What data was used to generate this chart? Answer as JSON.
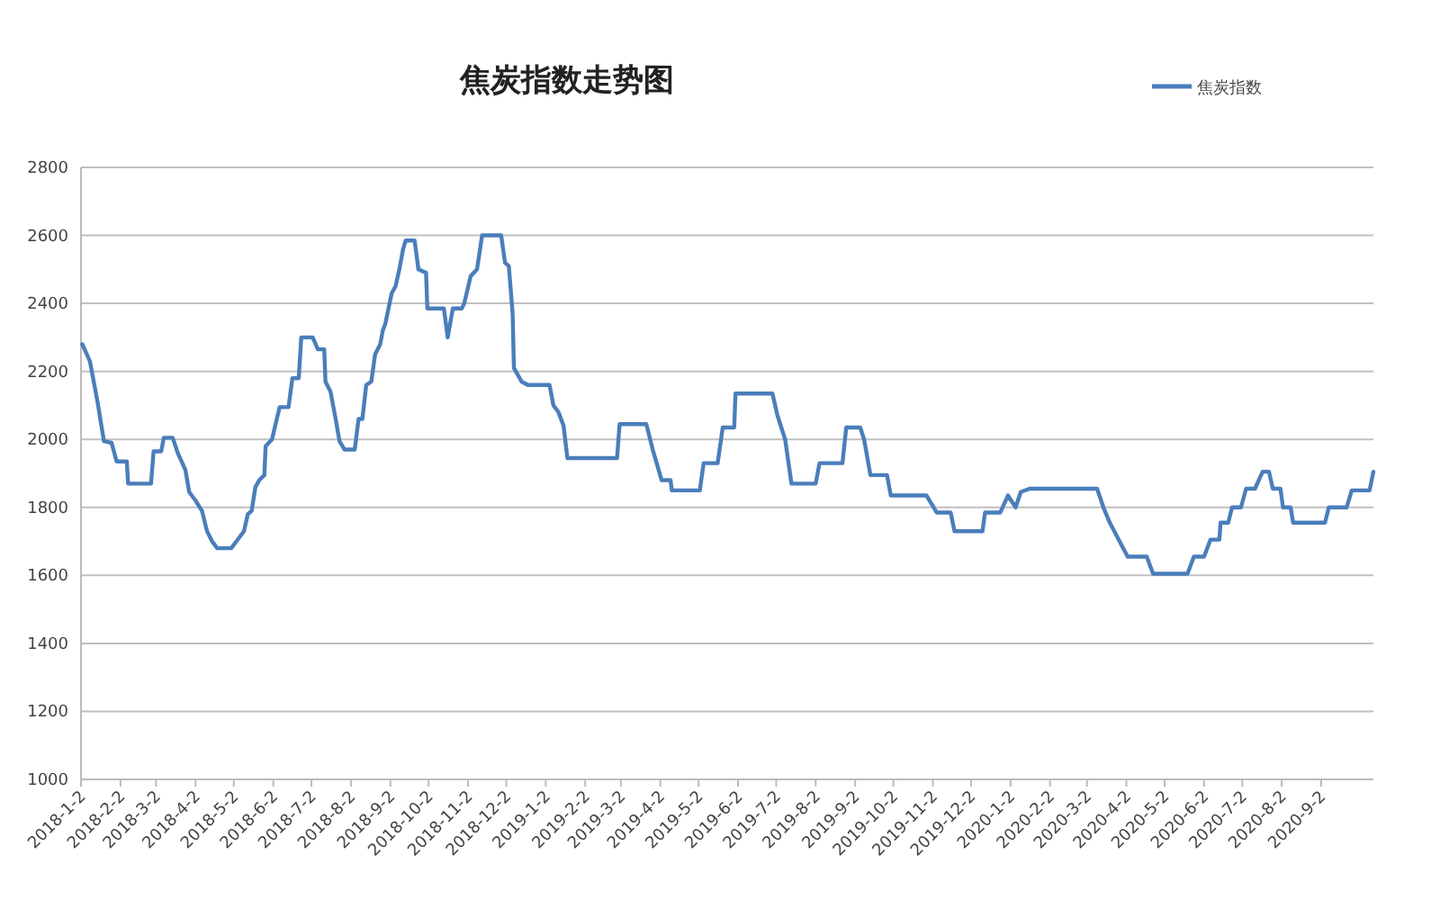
{
  "chart_data": {
    "type": "line",
    "title": "焦炭指数走势图",
    "legend": "top right",
    "grid": "y",
    "ylim": [
      1000,
      2800
    ],
    "yticks": [
      1000,
      1200,
      1400,
      1600,
      1800,
      2000,
      2200,
      2400,
      2600,
      2800
    ],
    "xlim": [
      "2018-01-02",
      "2020-10-13"
    ],
    "xticks": [
      {
        "value": "2018-01-02",
        "label": "2018-1-2"
      },
      {
        "value": "2018-02-02",
        "label": "2018-2-2"
      },
      {
        "value": "2018-03-02",
        "label": "2018-3-2"
      },
      {
        "value": "2018-04-02",
        "label": "2018-4-2"
      },
      {
        "value": "2018-05-02",
        "label": "2018-5-2"
      },
      {
        "value": "2018-06-02",
        "label": "2018-6-2"
      },
      {
        "value": "2018-07-02",
        "label": "2018-7-2"
      },
      {
        "value": "2018-08-02",
        "label": "2018-8-2"
      },
      {
        "value": "2018-09-02",
        "label": "2018-9-2"
      },
      {
        "value": "2018-10-02",
        "label": "2018-10-2"
      },
      {
        "value": "2018-11-02",
        "label": "2018-11-2"
      },
      {
        "value": "2018-12-02",
        "label": "2018-12-2"
      },
      {
        "value": "2019-01-02",
        "label": "2019-1-2"
      },
      {
        "value": "2019-02-02",
        "label": "2019-2-2"
      },
      {
        "value": "2019-03-02",
        "label": "2019-3-2"
      },
      {
        "value": "2019-04-02",
        "label": "2019-4-2"
      },
      {
        "value": "2019-05-02",
        "label": "2019-5-2"
      },
      {
        "value": "2019-06-02",
        "label": "2019-6-2"
      },
      {
        "value": "2019-07-02",
        "label": "2019-7-2"
      },
      {
        "value": "2019-08-02",
        "label": "2019-8-2"
      },
      {
        "value": "2019-09-02",
        "label": "2019-9-2"
      },
      {
        "value": "2019-10-02",
        "label": "2019-10-2"
      },
      {
        "value": "2019-11-02",
        "label": "2019-11-2"
      },
      {
        "value": "2019-12-02",
        "label": "2019-12-2"
      },
      {
        "value": "2020-01-02",
        "label": "2020-1-2"
      },
      {
        "value": "2020-02-02",
        "label": "2020-2-2"
      },
      {
        "value": "2020-03-02",
        "label": "2020-3-2"
      },
      {
        "value": "2020-04-02",
        "label": "2020-4-2"
      },
      {
        "value": "2020-05-02",
        "label": "2020-5-2"
      },
      {
        "value": "2020-06-02",
        "label": "2020-6-2"
      },
      {
        "value": "2020-07-02",
        "label": "2020-7-2"
      },
      {
        "value": "2020-08-02",
        "label": "2020-8-2"
      },
      {
        "value": "2020-09-02",
        "label": "2020-9-2"
      }
    ],
    "x": [
      "2018-01-03",
      "2018-01-09",
      "2018-01-15",
      "2018-01-20",
      "2018-01-26",
      "2018-01-30",
      "2018-02-07",
      "2018-02-08",
      "2018-02-26",
      "2018-02-28",
      "2018-03-06",
      "2018-03-08",
      "2018-03-15",
      "2018-03-19",
      "2018-03-25",
      "2018-03-28",
      "2018-04-02",
      "2018-04-07",
      "2018-04-11",
      "2018-04-15",
      "2018-04-19",
      "2018-04-30",
      "2018-05-06",
      "2018-05-10",
      "2018-05-13",
      "2018-05-16",
      "2018-05-19",
      "2018-05-22",
      "2018-05-26",
      "2018-05-27",
      "2018-06-01",
      "2018-06-07",
      "2018-06-14",
      "2018-06-17",
      "2018-06-22",
      "2018-06-24",
      "2018-07-03",
      "2018-07-07",
      "2018-07-12",
      "2018-07-13",
      "2018-07-17",
      "2018-07-21",
      "2018-07-24",
      "2018-07-28",
      "2018-08-05",
      "2018-08-08",
      "2018-08-11",
      "2018-08-14",
      "2018-08-18",
      "2018-08-21",
      "2018-08-25",
      "2018-08-27",
      "2018-08-29",
      "2018-09-03",
      "2018-09-06",
      "2018-09-09",
      "2018-09-12",
      "2018-09-14",
      "2018-09-21",
      "2018-09-24",
      "2018-09-30",
      "2018-10-01",
      "2018-10-14",
      "2018-10-17",
      "2018-10-21",
      "2018-10-28",
      "2018-10-30",
      "2018-11-04",
      "2018-11-09",
      "2018-11-13",
      "2018-11-28",
      "2018-12-01",
      "2018-12-04",
      "2018-12-07",
      "2018-12-08",
      "2018-12-14",
      "2018-12-19",
      "2019-01-05",
      "2019-01-08",
      "2019-01-12",
      "2019-01-16",
      "2019-01-19",
      "2019-02-27",
      "2019-03-01",
      "2019-03-22",
      "2019-03-27",
      "2019-04-03",
      "2019-04-10",
      "2019-04-11",
      "2019-05-03",
      "2019-05-06",
      "2019-05-17",
      "2019-05-21",
      "2019-05-30",
      "2019-05-31",
      "2019-06-29",
      "2019-07-03",
      "2019-07-09",
      "2019-07-14",
      "2019-08-02",
      "2019-08-05",
      "2019-08-23",
      "2019-08-26",
      "2019-09-06",
      "2019-09-09",
      "2019-09-14",
      "2019-09-27",
      "2019-09-30",
      "2019-10-28",
      "2019-11-05",
      "2019-11-16",
      "2019-11-19",
      "2019-12-11",
      "2019-12-13",
      "2019-12-25",
      "2019-12-31",
      "2020-01-06",
      "2020-01-10",
      "2020-01-17",
      "2020-03-10",
      "2020-03-15",
      "2020-03-20",
      "2020-03-27",
      "2020-04-03",
      "2020-04-18",
      "2020-04-23",
      "2020-05-20",
      "2020-05-25",
      "2020-06-02",
      "2020-06-07",
      "2020-06-14",
      "2020-06-15",
      "2020-06-21",
      "2020-06-24",
      "2020-07-01",
      "2020-07-05",
      "2020-07-12",
      "2020-07-18",
      "2020-07-23",
      "2020-07-26",
      "2020-08-01",
      "2020-08-03",
      "2020-08-09",
      "2020-08-11",
      "2020-09-05",
      "2020-09-08",
      "2020-09-22",
      "2020-09-26",
      "2020-10-10",
      "2020-10-13"
    ],
    "series": [
      {
        "name": "焦炭指数",
        "color": "#4a7ebb",
        "values": [
          2280,
          2230,
          2110,
          1995,
          1990,
          1935,
          1935,
          1870,
          1870,
          1965,
          1965,
          2005,
          2005,
          1960,
          1910,
          1845,
          1820,
          1790,
          1730,
          1700,
          1680,
          1680,
          1710,
          1730,
          1780,
          1790,
          1860,
          1880,
          1895,
          1980,
          2000,
          2095,
          2095,
          2180,
          2180,
          2300,
          2300,
          2265,
          2265,
          2170,
          2140,
          2060,
          1995,
          1970,
          1970,
          2060,
          2060,
          2160,
          2170,
          2250,
          2280,
          2320,
          2340,
          2430,
          2450,
          2500,
          2560,
          2585,
          2585,
          2500,
          2490,
          2385,
          2385,
          2300,
          2385,
          2385,
          2400,
          2480,
          2500,
          2600,
          2600,
          2520,
          2510,
          2370,
          2210,
          2170,
          2160,
          2160,
          2100,
          2080,
          2040,
          1945,
          1945,
          2045,
          2045,
          1970,
          1880,
          1880,
          1850,
          1850,
          1930,
          1930,
          2035,
          2035,
          2135,
          2135,
          2070,
          2000,
          1870,
          1870,
          1930,
          1930,
          2035,
          2035,
          2000,
          1895,
          1895,
          1835,
          1835,
          1785,
          1785,
          1730,
          1730,
          1785,
          1785,
          1835,
          1800,
          1845,
          1855,
          1855,
          1800,
          1755,
          1705,
          1655,
          1655,
          1605,
          1605,
          1655,
          1655,
          1705,
          1705,
          1755,
          1755,
          1800,
          1800,
          1855,
          1855,
          1905,
          1905,
          1855,
          1855,
          1800,
          1800,
          1755,
          1755,
          1800,
          1800,
          1850,
          1850,
          1905
        ]
      }
    ]
  }
}
